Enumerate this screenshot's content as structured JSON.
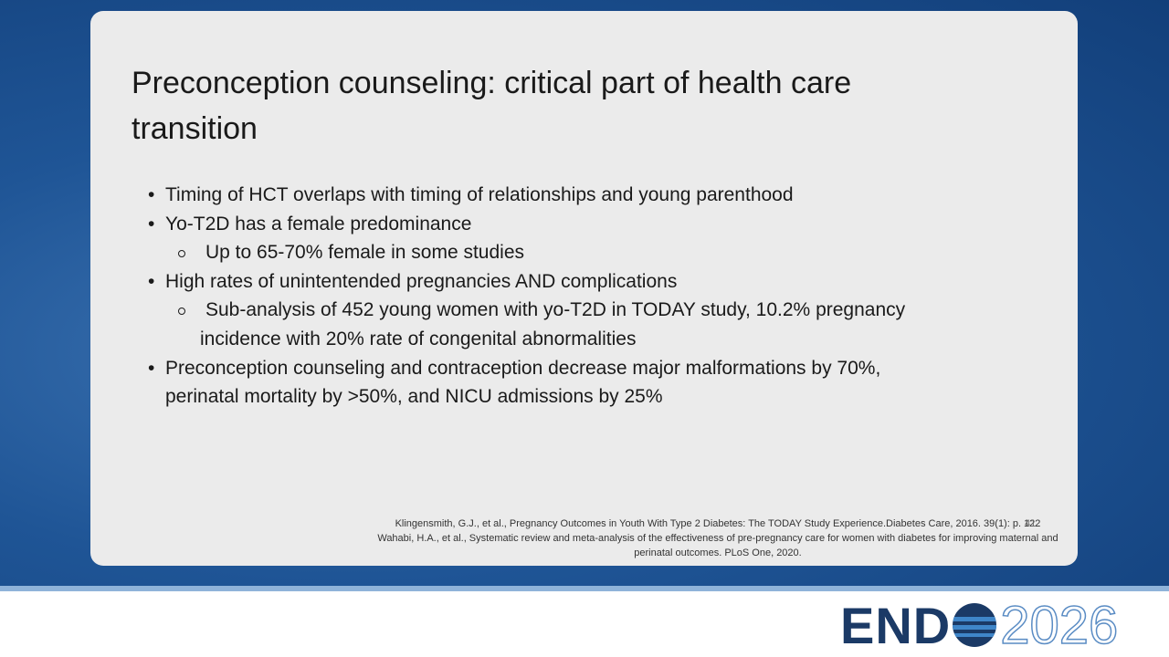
{
  "slide": {
    "title": "Preconception counseling: critical part of health care transition",
    "bullets": [
      {
        "text": "Timing of HCT overlaps with timing of relationships and young parenthood",
        "sub": []
      },
      {
        "text": "Yo-T2D has a female predominance",
        "sub": [
          "Up to 65-70% female in some studies"
        ]
      },
      {
        "text": "High rates of unintentended pregnancies AND complications",
        "sub": [
          "Sub-analysis of 452 young women with yo-T2D in TODAY study, 10.2% pregnancy incidence with 20% rate of congenital abnormalities"
        ]
      },
      {
        "text": "Preconception counseling and contraception decrease major malformations by 70%, perinatal mortality by >50%, and NICU admissions by 25%",
        "sub": []
      }
    ],
    "references": [
      "Klingensmith, G.J., et al., Pregnancy Outcomes in Youth With Type 2 Diabetes: The TODAY Study Experience.Diabetes Care, 2016. 39(1): p. 122",
      "Wahabi, H.A., et al., Systematic review and meta-analysis of the effectiveness of pre-pregnancy care for women with diabetes for improving maternal and perinatal outcomes. PLoS One, 2020."
    ],
    "slide_number": "41"
  },
  "logo": {
    "text": "END",
    "year": "2026"
  }
}
